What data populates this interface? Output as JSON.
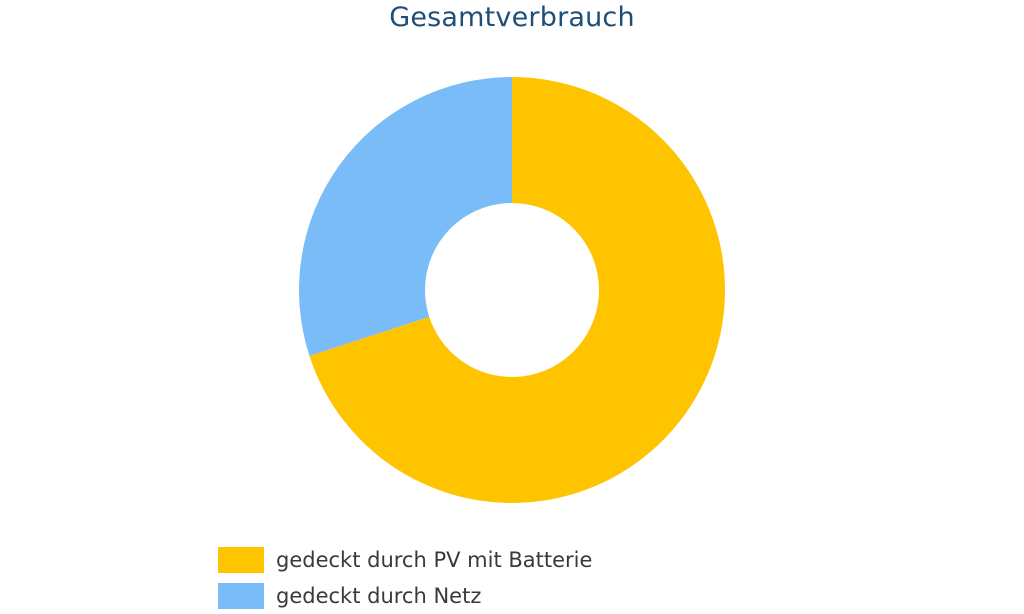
{
  "chart_data": {
    "type": "pie",
    "variant": "donut",
    "title": "Gesamtverbrauch",
    "categories": [
      "gedeckt durch PV mit Batterie",
      "gedeckt durch Netz"
    ],
    "values": [
      70,
      30
    ],
    "colors": [
      "#ffc400",
      "#7abcf8"
    ],
    "legend_position": "bottom"
  }
}
